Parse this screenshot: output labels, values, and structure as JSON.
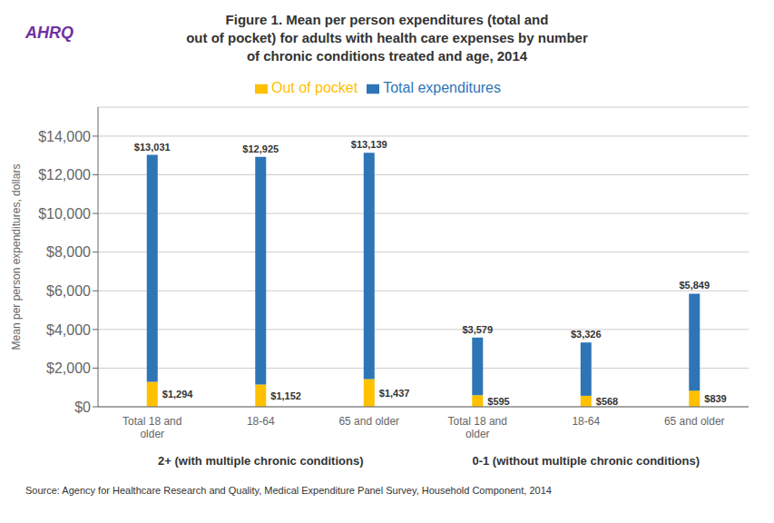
{
  "chart_data": {
    "type": "bar",
    "stacked": true,
    "title": "Figure 1. Mean per person expenditures (total and\nout of pocket) for adults with health care expenses by number\nof chronic conditions treated and age, 2014",
    "ylabel": "Mean per person expenditures, dollars",
    "source": "Source: Agency for Healthcare Research and Quality, Medical Expenditure Panel Survey,  Household Component, 2014",
    "annotations": [
      "AHRQ"
    ],
    "group_labels": [
      "2+ (with multiple chronic conditions)",
      "0-1 (without multiple chronic conditions)"
    ],
    "categories": [
      "Total 18 and\nolder",
      "18-64",
      "65 and older",
      "Total 18 and\nolder",
      "18-64",
      "65 and older"
    ],
    "series": [
      {
        "name": "Out of pocket",
        "color": "#FFC000",
        "values": [
          1294,
          1152,
          1437,
          595,
          568,
          839
        ],
        "value_labels": [
          "$1,294",
          "$1,152",
          "$1,437",
          "$595",
          "$568",
          "$839"
        ]
      },
      {
        "name": "Total expenditures",
        "color": "#2E75B6",
        "values": [
          11737,
          11773,
          11702,
          2984,
          2758,
          5010
        ]
      }
    ],
    "totals": [
      13031,
      12925,
      13139,
      3579,
      3326,
      5849
    ],
    "total_labels": [
      "$13,031",
      "$12,925",
      "$13,139",
      "$3,579",
      "$3,326",
      "$5,849"
    ],
    "ylim": [
      0,
      15500
    ],
    "yticks": [
      {
        "value": 0,
        "label": "$0"
      },
      {
        "value": 2000,
        "label": "$2,000"
      },
      {
        "value": 4000,
        "label": "$4,000"
      },
      {
        "value": 6000,
        "label": "$6,000"
      },
      {
        "value": 8000,
        "label": "$8,000"
      },
      {
        "value": 10000,
        "label": "$10,000"
      },
      {
        "value": 12000,
        "label": "$12,000"
      },
      {
        "value": 14000,
        "label": "$14,000"
      }
    ],
    "grid": true,
    "legend": "top",
    "data_labels": true
  }
}
